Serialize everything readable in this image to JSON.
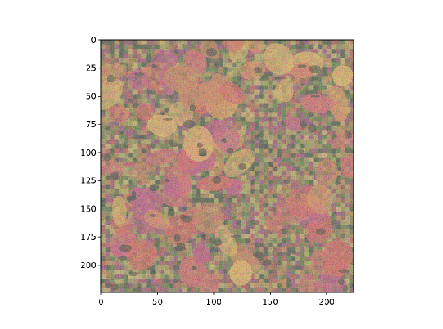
{
  "chart_data": {
    "type": "heatmap",
    "title": "",
    "xlabel": "",
    "ylabel": "",
    "image_size": [
      224,
      224
    ],
    "xlim": [
      0,
      224
    ],
    "ylim": [
      224,
      0
    ],
    "x_ticks": [
      0,
      50,
      100,
      150,
      200
    ],
    "y_ticks": [
      0,
      25,
      50,
      75,
      100,
      125,
      150,
      175,
      200
    ],
    "x_tick_labels": [
      "0",
      "50",
      "100",
      "150",
      "200"
    ],
    "y_tick_labels": [
      "0",
      "25",
      "50",
      "75",
      "100",
      "125",
      "150",
      "175",
      "200"
    ],
    "grid": false,
    "legend": "none",
    "image_description_colors": [
      "#d8434a",
      "#e0823a",
      "#c9b74a",
      "#5a7a2a",
      "#2d3a22",
      "#b23a7a",
      "#f0c060"
    ]
  }
}
